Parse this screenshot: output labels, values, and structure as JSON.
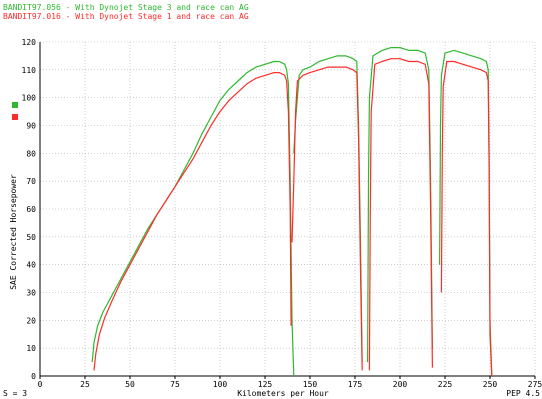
{
  "chart_data": {
    "type": "line",
    "title": "",
    "legend": [
      {
        "text": "BANDIT97.056 - With Dynojet Stage 3 and race can      AG",
        "color": "#2eb82e"
      },
      {
        "text": "BANDIT97.016 - With Dynojet Stage 1 and race can      AG",
        "color": "#ff2a2a"
      }
    ],
    "xlabel": "Kilometers per Hour",
    "ylabel": "SAE Corrected Horsepower",
    "xlim": [
      0,
      275
    ],
    "ylim": [
      0,
      120
    ],
    "xticks": [
      "0",
      "25",
      "50",
      "75",
      "100",
      "125",
      "150",
      "175",
      "200",
      "225",
      "250",
      "275"
    ],
    "yticks": [
      "0",
      "10",
      "20",
      "30",
      "40",
      "50",
      "60",
      "70",
      "80",
      "90",
      "100",
      "110",
      "120"
    ],
    "grid": true,
    "footer_left": "S = 3",
    "footer_right": "PEP 4.5",
    "series": [
      {
        "name": "BANDIT97.056 - With Dynojet Stage 3 and race can",
        "color": "#2eb82e",
        "segments": [
          [
            [
              29,
              5
            ],
            [
              30,
              12
            ],
            [
              32,
              18
            ],
            [
              35,
              23
            ],
            [
              40,
              29
            ],
            [
              45,
              35
            ],
            [
              50,
              41
            ],
            [
              55,
              47
            ],
            [
              60,
              53
            ],
            [
              65,
              58
            ],
            [
              70,
              63
            ],
            [
              75,
              68
            ],
            [
              80,
              74
            ],
            [
              85,
              80
            ],
            [
              90,
              87
            ],
            [
              95,
              93
            ],
            [
              100,
              99
            ],
            [
              105,
              103
            ],
            [
              110,
              106
            ],
            [
              115,
              109
            ],
            [
              120,
              111
            ],
            [
              125,
              112
            ],
            [
              130,
              113
            ],
            [
              133,
              113
            ],
            [
              136,
              112
            ],
            [
              137,
              110
            ],
            [
              138,
              105
            ],
            [
              139,
              70
            ],
            [
              140,
              20
            ],
            [
              141,
              0
            ]
          ],
          [
            [
              141,
              80
            ],
            [
              142,
              92
            ],
            [
              144,
              108
            ],
            [
              146,
              110
            ],
            [
              150,
              111
            ],
            [
              155,
              113
            ],
            [
              160,
              114
            ],
            [
              165,
              115
            ],
            [
              170,
              115
            ],
            [
              174,
              114
            ],
            [
              176,
              113
            ],
            [
              177,
              90
            ],
            [
              178,
              50
            ],
            [
              179,
              5
            ]
          ],
          [
            [
              182,
              5
            ],
            [
              182.5,
              70
            ],
            [
              183,
              100
            ],
            [
              185,
              115
            ],
            [
              190,
              117
            ],
            [
              195,
              118
            ],
            [
              200,
              118
            ],
            [
              205,
              117
            ],
            [
              210,
              117
            ],
            [
              214,
              116
            ],
            [
              216,
              110
            ],
            [
              217,
              70
            ],
            [
              218,
              10
            ]
          ],
          [
            [
              222,
              40
            ],
            [
              222.5,
              90
            ],
            [
              223,
              108
            ],
            [
              225,
              116
            ],
            [
              230,
              117
            ],
            [
              235,
              116
            ],
            [
              240,
              115
            ],
            [
              245,
              114
            ],
            [
              248,
              113
            ],
            [
              249,
              110
            ],
            [
              249.5,
              80
            ],
            [
              250,
              20
            ],
            [
              251,
              0
            ]
          ]
        ]
      },
      {
        "name": "BANDIT97.016 - With Dynojet Stage 1 and race can",
        "color": "#ff2a2a",
        "segments": [
          [
            [
              30,
              2
            ],
            [
              31,
              8
            ],
            [
              33,
              15
            ],
            [
              36,
              21
            ],
            [
              40,
              27
            ],
            [
              45,
              34
            ],
            [
              50,
              40
            ],
            [
              55,
              46
            ],
            [
              60,
              52
            ],
            [
              65,
              58
            ],
            [
              70,
              63
            ],
            [
              75,
              68
            ],
            [
              80,
              73
            ],
            [
              85,
              78
            ],
            [
              90,
              84
            ],
            [
              95,
              90
            ],
            [
              100,
              95
            ],
            [
              105,
              99
            ],
            [
              110,
              102
            ],
            [
              115,
              105
            ],
            [
              120,
              107
            ],
            [
              125,
              108
            ],
            [
              130,
              109
            ],
            [
              133,
              109
            ],
            [
              136,
              108
            ],
            [
              137,
              106
            ],
            [
              138,
              95
            ],
            [
              139,
              60
            ],
            [
              139.5,
              18
            ]
          ],
          [
            [
              140,
              48
            ],
            [
              141,
              70
            ],
            [
              142,
              95
            ],
            [
              143,
              106
            ],
            [
              146,
              108
            ],
            [
              150,
              109
            ],
            [
              155,
              110
            ],
            [
              160,
              111
            ],
            [
              165,
              111
            ],
            [
              170,
              111
            ],
            [
              174,
              110
            ],
            [
              176,
              109
            ],
            [
              177,
              85
            ],
            [
              178,
              40
            ],
            [
              179,
              2
            ]
          ],
          [
            [
              183,
              2
            ],
            [
              183.5,
              60
            ],
            [
              184,
              95
            ],
            [
              186,
              112
            ],
            [
              190,
              113
            ],
            [
              195,
              114
            ],
            [
              200,
              114
            ],
            [
              205,
              113
            ],
            [
              210,
              113
            ],
            [
              214,
              112
            ],
            [
              216,
              105
            ],
            [
              217,
              60
            ],
            [
              218,
              3
            ]
          ],
          [
            [
              223,
              30
            ],
            [
              223.5,
              80
            ],
            [
              224,
              104
            ],
            [
              226,
              113
            ],
            [
              230,
              113
            ],
            [
              235,
              112
            ],
            [
              240,
              111
            ],
            [
              245,
              110
            ],
            [
              248,
              109
            ],
            [
              249,
              106
            ],
            [
              249.5,
              75
            ],
            [
              250,
              15
            ],
            [
              251,
              0
            ]
          ]
        ]
      }
    ]
  }
}
